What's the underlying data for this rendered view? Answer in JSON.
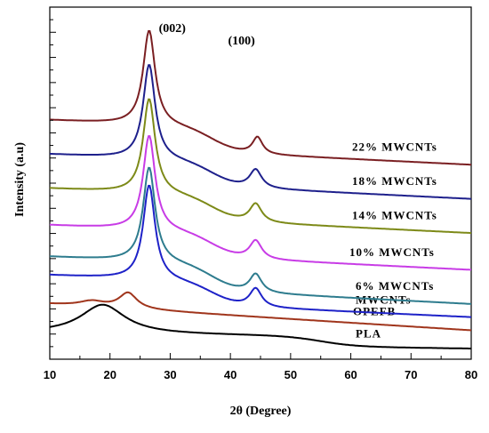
{
  "chart_data": {
    "type": "line",
    "xlabel": "2θ (Degree)",
    "ylabel": "Intensity (a.u)",
    "xlim": [
      10,
      80
    ],
    "xticks": [
      "10",
      "20",
      "30",
      "40",
      "50",
      "60",
      "70",
      "80"
    ],
    "y_ticks_labeled": false,
    "grid": false,
    "annotations": [
      {
        "text": "(002)",
        "x": 26.5
      },
      {
        "text": "(100)",
        "x": 44.5
      }
    ],
    "series": [
      {
        "name": "PLA",
        "color": "#000000",
        "base": 0.5,
        "end": 0.2,
        "slope": "pla",
        "peaks": [
          [
            18.8,
            0.55,
            4.5
          ]
        ]
      },
      {
        "name": "OPEFB",
        "color": "#a0351c",
        "base": 1.05,
        "end": 0.55,
        "slope": "decay",
        "peaks": [
          [
            23.0,
            0.3,
            1.8
          ],
          [
            17.0,
            0.1,
            2.5
          ]
        ]
      },
      {
        "name": "MWCNTs",
        "color": "#1e22c8",
        "base": 1.6,
        "end": 0.8,
        "slope": "step",
        "peaks": [
          [
            26.5,
            1.8,
            1.2
          ],
          [
            44.2,
            0.35,
            1.2
          ]
        ]
      },
      {
        "name": "6% MWCNTs",
        "color": "#2e7c8e",
        "base": 1.95,
        "end": 1.05,
        "slope": "step",
        "peaks": [
          [
            26.5,
            1.8,
            1.2
          ],
          [
            44.2,
            0.35,
            1.2
          ]
        ]
      },
      {
        "name": "10% MWCNTs",
        "color": "#c83ce6",
        "base": 2.55,
        "end": 1.7,
        "slope": "step",
        "peaks": [
          [
            26.5,
            1.8,
            1.2
          ],
          [
            44.2,
            0.35,
            1.2
          ]
        ]
      },
      {
        "name": "14% MWCNTs",
        "color": "#7d8a18",
        "base": 3.25,
        "end": 2.4,
        "slope": "step",
        "peaks": [
          [
            26.5,
            1.8,
            1.2
          ],
          [
            44.2,
            0.35,
            1.2
          ]
        ]
      },
      {
        "name": "18% MWCNTs",
        "color": "#1e208c",
        "base": 3.9,
        "end": 3.05,
        "slope": "step",
        "peaks": [
          [
            26.5,
            1.8,
            1.2
          ],
          [
            44.2,
            0.35,
            1.2
          ]
        ]
      },
      {
        "name": "22% MWCNTs",
        "color": "#7a1f22",
        "base": 4.55,
        "end": 3.7,
        "slope": "step",
        "peaks": [
          [
            26.5,
            1.8,
            1.2
          ],
          [
            44.5,
            0.32,
            1.0
          ]
        ]
      }
    ]
  }
}
